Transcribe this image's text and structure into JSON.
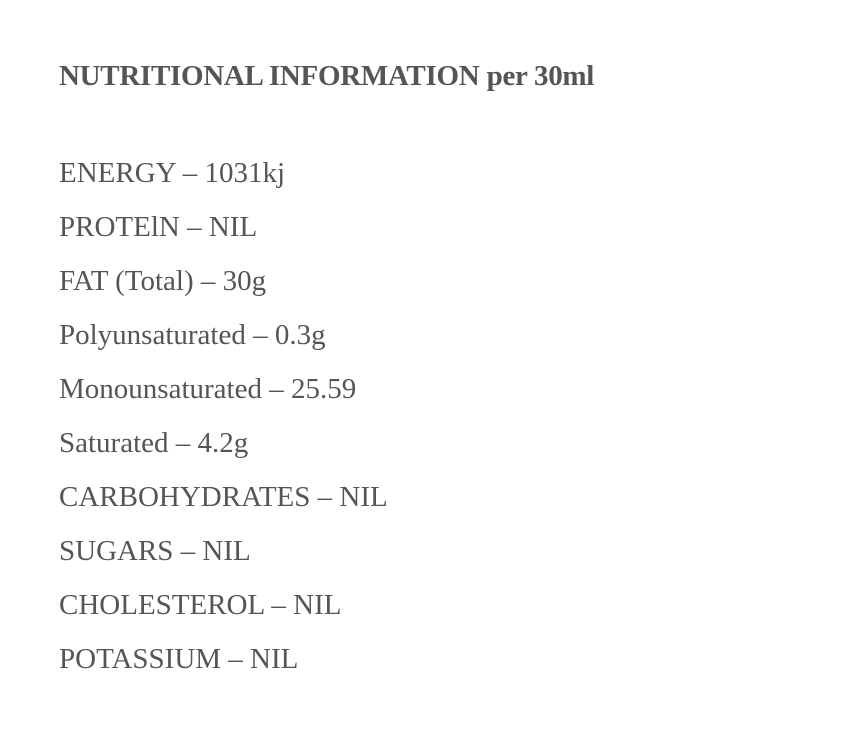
{
  "heading": {
    "bold": "NUTRITIONAL INFORMATION",
    "suffix": "per 30ml"
  },
  "items": [
    "ENERGY – 1031kj",
    "PROTElN – NIL",
    "FAT (Total) – 30g",
    "Polyunsaturated – 0.3g",
    "Monounsaturated – 25.59",
    "Saturated – 4.2g",
    "CARBOHYDRATES – NIL",
    "SUGARS – NIL",
    "CHOLESTEROL – NIL",
    "POTASSIUM – NIL"
  ],
  "colors": {
    "text": "#555555",
    "background": "#ffffff"
  }
}
